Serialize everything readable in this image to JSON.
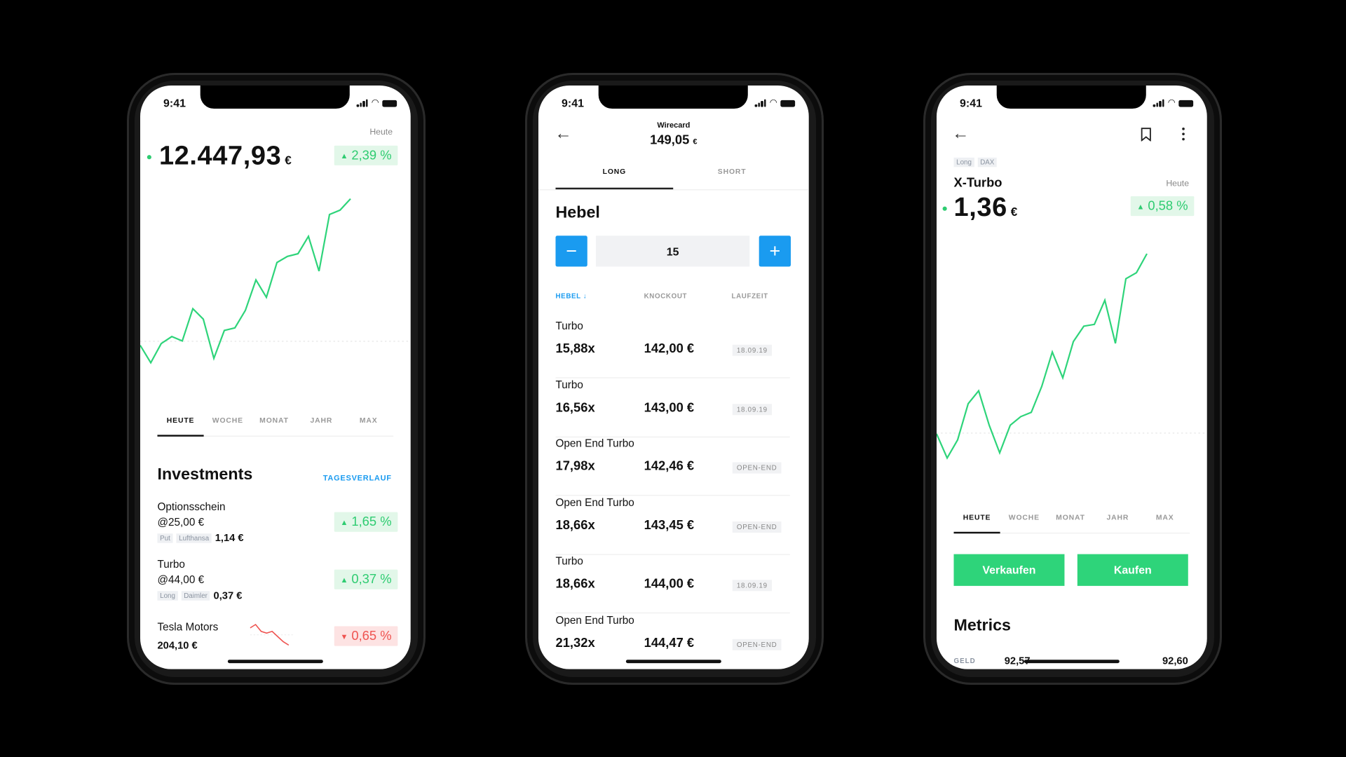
{
  "colors": {
    "up": "#2ecc71",
    "up_bg": "#e2f7e9",
    "down": "#ef5350",
    "down_bg": "#fde3e3",
    "accent": "#1a9bf0",
    "buy": "#2ed47a"
  },
  "status_bar": {
    "time": "9:41"
  },
  "portfolio": {
    "period_label": "Heute",
    "value": "12.447,93",
    "currency": "€",
    "change": "2,39 %",
    "chart_values": [
      98,
      78,
      100,
      108,
      103,
      140,
      128,
      83,
      115,
      118,
      138,
      173,
      153,
      193,
      200,
      203,
      223,
      183,
      248,
      253,
      266
    ],
    "tabs": [
      "HEUTE",
      "WOCHE",
      "MONAT",
      "JAHR",
      "MAX"
    ],
    "active_tab": "HEUTE",
    "section_title": "Investments",
    "section_link": "TAGESVERLAUF",
    "investments": [
      {
        "name": "Optionsschein",
        "strike": "@25,00 €",
        "tags": [
          "Put",
          "Lufthansa"
        ],
        "price": "1,14 €",
        "change": "1,65 %",
        "direction": "up"
      },
      {
        "name": "Turbo",
        "strike": "@44,00 €",
        "tags": [
          "Long",
          "Daimler"
        ],
        "price": "0,37 €",
        "change": "0,37 %",
        "direction": "up"
      }
    ],
    "tesla": {
      "name": "Tesla Motors",
      "price": "204,10 €",
      "change": "0,65 %",
      "direction": "down",
      "spark_values": [
        20,
        24,
        16,
        14,
        16,
        10,
        4,
        0
      ]
    }
  },
  "products": {
    "title": "Wirecard",
    "price": "149,05",
    "currency": "€",
    "tabs": [
      "LONG",
      "SHORT"
    ],
    "active_tab": "LONG",
    "section_title": "Hebel",
    "stepper": {
      "minus": "−",
      "value": "15",
      "plus": "+"
    },
    "columns": [
      "HEBEL ↓",
      "KNOCKOUT",
      "LAUFZEIT"
    ],
    "sort_column": "HEBEL",
    "rows": [
      {
        "name": "Turbo",
        "leverage": "15,88x",
        "knockout": "142,00 €",
        "term": "18.09.19"
      },
      {
        "name": "Turbo",
        "leverage": "16,56x",
        "knockout": "143,00 €",
        "term": "18.09.19"
      },
      {
        "name": "Open End Turbo",
        "leverage": "17,98x",
        "knockout": "142,46 €",
        "term": "OPEN-END"
      },
      {
        "name": "Open End Turbo",
        "leverage": "18,66x",
        "knockout": "143,45 €",
        "term": "OPEN-END"
      },
      {
        "name": "Turbo",
        "leverage": "18,66x",
        "knockout": "144,00 €",
        "term": "18.09.19"
      },
      {
        "name": "Open End Turbo",
        "leverage": "21,32x",
        "knockout": "144,47 €",
        "term": "OPEN-END"
      }
    ]
  },
  "detail": {
    "tags": [
      "Long",
      "DAX"
    ],
    "name": "X-Turbo",
    "period_label": "Heute",
    "value": "1,36",
    "currency": "€",
    "change": "0,58 %",
    "chart_values": [
      28,
      0,
      21,
      63,
      78,
      38,
      6,
      38,
      48,
      53,
      83,
      123,
      93,
      135,
      153,
      155,
      183,
      133,
      208,
      215,
      237
    ],
    "tabs": [
      "HEUTE",
      "WOCHE",
      "MONAT",
      "JAHR",
      "MAX"
    ],
    "active_tab": "HEUTE",
    "sell_label": "Verkaufen",
    "buy_label": "Kaufen",
    "metrics_title": "Metrics",
    "metrics": {
      "bid_label": "GELD",
      "bid": "92,57",
      "ask": "92,60"
    }
  }
}
